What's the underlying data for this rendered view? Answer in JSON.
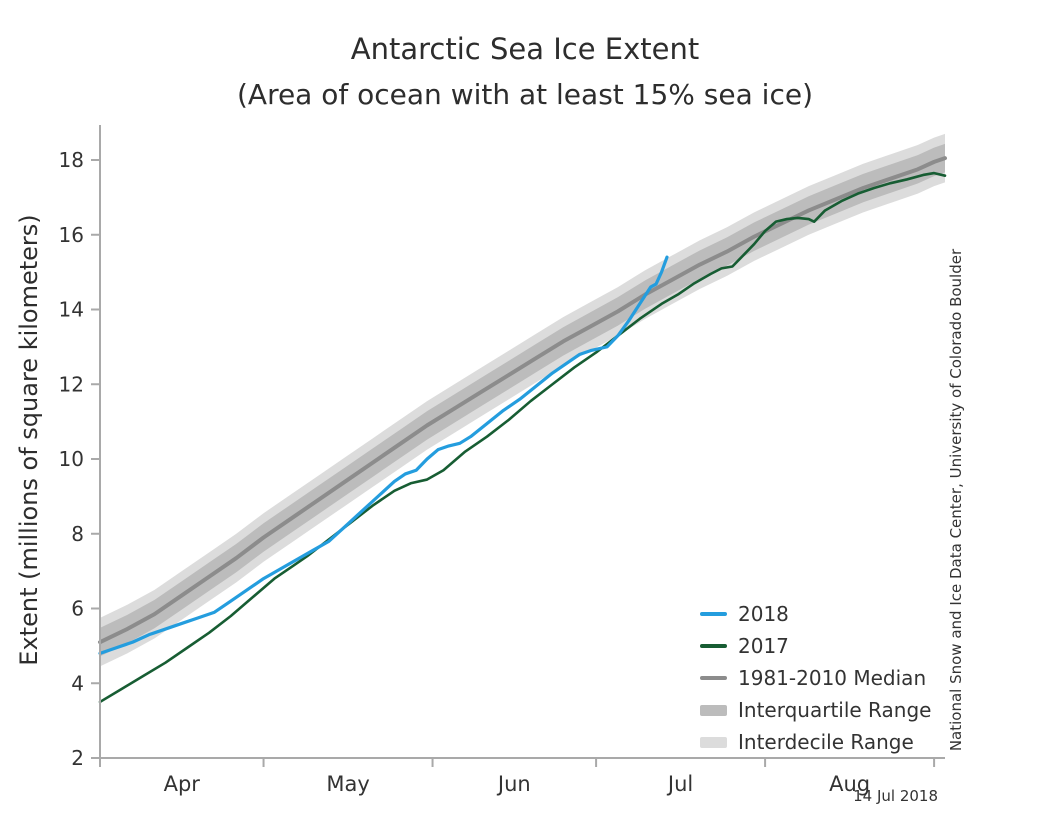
{
  "title": "Antarctic Sea Ice Extent",
  "subtitle": "(Area of ocean with at least 15% sea ice)",
  "y_axis_label": "Extent (millions of square kilometers)",
  "credit": "National Snow and Ice Data Center, University of Colorado Boulder",
  "date_stamp": "14 Jul 2018",
  "colors": {
    "line_2018": "#249dde",
    "line_2017": "#175d33",
    "median": "#8c8c8c",
    "iqr_band": "#bcbcbc",
    "idr_band": "#dcdcdc",
    "axis": "#a9a9a9",
    "text": "#333333"
  },
  "legend": {
    "items": [
      {
        "label": "2018",
        "swatch": "line",
        "color_key": "line_2018"
      },
      {
        "label": "2017",
        "swatch": "line",
        "color_key": "line_2017"
      },
      {
        "label": "1981-2010 Median",
        "swatch": "line",
        "color_key": "median"
      },
      {
        "label": "Interquartile Range",
        "swatch": "band",
        "color_key": "iqr_band"
      },
      {
        "label": "Interdecile Range",
        "swatch": "band",
        "color_key": "idr_band"
      }
    ]
  },
  "chart_data": {
    "type": "line",
    "title": "Antarctic Sea Ice Extent",
    "subtitle": "(Area of ocean with at least 15% sea ice)",
    "xlabel": "",
    "ylabel": "Extent (millions of square kilometers)",
    "x_unit": "days since 1 April",
    "x_range": [
      0,
      155
    ],
    "ylim": [
      2,
      18.9
    ],
    "y_ticks": [
      2,
      4,
      6,
      8,
      10,
      12,
      14,
      16,
      18
    ],
    "month_boundaries": [
      0,
      30,
      61,
      91,
      122,
      153
    ],
    "month_labels": [
      {
        "label": "Apr",
        "day": 15
      },
      {
        "label": "May",
        "day": 45.5
      },
      {
        "label": "Jun",
        "day": 76
      },
      {
        "label": "Jul",
        "day": 106.5
      },
      {
        "label": "Aug",
        "day": 137.5
      }
    ],
    "legend_position": "inside bottom-right",
    "grid": false,
    "bands": {
      "based_on": "1981-2010 Median",
      "iqr_half_width": 0.38,
      "idr_half_width": 0.65
    },
    "series": [
      {
        "key": "median",
        "name": "1981-2010 Median",
        "points": [
          [
            0,
            5.1
          ],
          [
            5,
            5.45
          ],
          [
            10,
            5.85
          ],
          [
            15,
            6.35
          ],
          [
            20,
            6.85
          ],
          [
            25,
            7.35
          ],
          [
            30,
            7.9
          ],
          [
            35,
            8.4
          ],
          [
            40,
            8.9
          ],
          [
            45,
            9.4
          ],
          [
            50,
            9.9
          ],
          [
            55,
            10.4
          ],
          [
            60,
            10.9
          ],
          [
            65,
            11.35
          ],
          [
            70,
            11.8
          ],
          [
            75,
            12.25
          ],
          [
            80,
            12.7
          ],
          [
            85,
            13.15
          ],
          [
            90,
            13.55
          ],
          [
            95,
            13.95
          ],
          [
            100,
            14.4
          ],
          [
            105,
            14.8
          ],
          [
            110,
            15.2
          ],
          [
            115,
            15.55
          ],
          [
            120,
            15.95
          ],
          [
            125,
            16.3
          ],
          [
            130,
            16.65
          ],
          [
            135,
            16.95
          ],
          [
            140,
            17.25
          ],
          [
            145,
            17.5
          ],
          [
            150,
            17.75
          ],
          [
            153,
            17.95
          ],
          [
            155,
            18.05
          ]
        ]
      },
      {
        "key": "y2017",
        "name": "2017",
        "points": [
          [
            0,
            3.5
          ],
          [
            4,
            3.85
          ],
          [
            8,
            4.2
          ],
          [
            12,
            4.55
          ],
          [
            16,
            4.95
          ],
          [
            20,
            5.35
          ],
          [
            24,
            5.8
          ],
          [
            28,
            6.3
          ],
          [
            32,
            6.8
          ],
          [
            35,
            7.1
          ],
          [
            38,
            7.4
          ],
          [
            42,
            7.85
          ],
          [
            46,
            8.3
          ],
          [
            50,
            8.75
          ],
          [
            54,
            9.15
          ],
          [
            57,
            9.35
          ],
          [
            60,
            9.45
          ],
          [
            63,
            9.7
          ],
          [
            67,
            10.2
          ],
          [
            71,
            10.6
          ],
          [
            75,
            11.05
          ],
          [
            79,
            11.55
          ],
          [
            83,
            12.0
          ],
          [
            87,
            12.45
          ],
          [
            91,
            12.85
          ],
          [
            95,
            13.3
          ],
          [
            99,
            13.75
          ],
          [
            103,
            14.15
          ],
          [
            106,
            14.4
          ],
          [
            109,
            14.7
          ],
          [
            112,
            14.95
          ],
          [
            114,
            15.1
          ],
          [
            116,
            15.15
          ],
          [
            118,
            15.45
          ],
          [
            120,
            15.75
          ],
          [
            122,
            16.1
          ],
          [
            124,
            16.35
          ],
          [
            126,
            16.42
          ],
          [
            128,
            16.45
          ],
          [
            130,
            16.42
          ],
          [
            131,
            16.35
          ],
          [
            133,
            16.65
          ],
          [
            136,
            16.9
          ],
          [
            139,
            17.1
          ],
          [
            142,
            17.25
          ],
          [
            145,
            17.38
          ],
          [
            148,
            17.48
          ],
          [
            151,
            17.6
          ],
          [
            153,
            17.65
          ],
          [
            155,
            17.58
          ]
        ]
      },
      {
        "key": "y2018",
        "name": "2018",
        "points": [
          [
            0,
            4.8
          ],
          [
            3,
            4.95
          ],
          [
            6,
            5.1
          ],
          [
            9,
            5.3
          ],
          [
            12,
            5.45
          ],
          [
            15,
            5.6
          ],
          [
            18,
            5.75
          ],
          [
            21,
            5.9
          ],
          [
            24,
            6.2
          ],
          [
            27,
            6.5
          ],
          [
            30,
            6.8
          ],
          [
            33,
            7.05
          ],
          [
            36,
            7.3
          ],
          [
            39,
            7.55
          ],
          [
            42,
            7.8
          ],
          [
            45,
            8.2
          ],
          [
            48,
            8.6
          ],
          [
            51,
            9.0
          ],
          [
            54,
            9.4
          ],
          [
            56,
            9.6
          ],
          [
            58,
            9.7
          ],
          [
            60,
            10.0
          ],
          [
            62,
            10.25
          ],
          [
            64,
            10.35
          ],
          [
            66,
            10.42
          ],
          [
            68,
            10.6
          ],
          [
            71,
            10.95
          ],
          [
            74,
            11.3
          ],
          [
            77,
            11.6
          ],
          [
            80,
            11.95
          ],
          [
            83,
            12.3
          ],
          [
            86,
            12.6
          ],
          [
            88,
            12.8
          ],
          [
            90,
            12.9
          ],
          [
            93,
            13.0
          ],
          [
            95,
            13.3
          ],
          [
            97,
            13.7
          ],
          [
            99,
            14.15
          ],
          [
            101,
            14.6
          ],
          [
            102,
            14.68
          ],
          [
            103,
            15.0
          ],
          [
            104,
            15.4
          ]
        ]
      }
    ]
  }
}
